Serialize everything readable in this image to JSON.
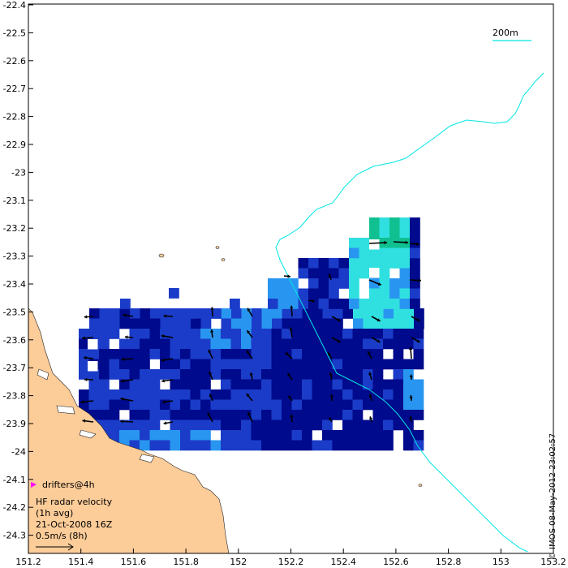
{
  "axes": {
    "x_ticks": [
      "151.2",
      "151.4",
      "151.6",
      "151.8",
      "152",
      "152.2",
      "152.4",
      "152.6",
      "152.8",
      "153",
      "153.2"
    ],
    "y_ticks": [
      "-22.4",
      "-22.5",
      "-22.6",
      "-22.7",
      "-22.8",
      "-22.9",
      "-23",
      "-23.1",
      "-23.2",
      "-23.3",
      "-23.4",
      "-23.5",
      "-23.6",
      "-23.7",
      "-23.8",
      "-23.9",
      "-24",
      "-24.1",
      "-24.2",
      "-24.3"
    ]
  },
  "scale_bar": {
    "label": "200m",
    "color": "#00e5e5"
  },
  "legend": {
    "drifters_label": "drifters@4h",
    "drifters_color": "#ff00ff",
    "title_line1": "HF radar velocity",
    "title_line2": "(1h avg)",
    "datetime": "21-Oct-2008 16Z",
    "reference_speed": "0.5m/s (8h)"
  },
  "credit": "© IMOS 08-May-2012 23:02:57",
  "colors": {
    "land": "#fccc99",
    "contour": "#00e5e5",
    "velocity_dark": "#000a8c",
    "velocity_mid": "#1a3cc8",
    "velocity_light": "#2896f0",
    "velocity_cyan": "#30e0e0",
    "velocity_green": "#10c090",
    "arrow": "#000000"
  }
}
